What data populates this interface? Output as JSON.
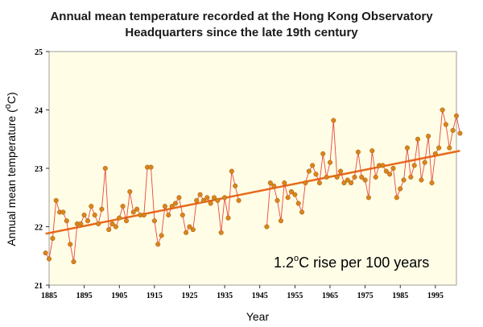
{
  "chart_data": {
    "type": "line",
    "title_line1": "Annual mean temperature recorded at the Hong Kong Observatory",
    "title_line2": "Headquarters since the late 19th century",
    "xlabel": "Year",
    "ylabel_main": "Annual mean temperature (",
    "ylabel_unit_sup": "o",
    "ylabel_unit": "C)",
    "xlim": [
      1885,
      2001
    ],
    "ylim": [
      21,
      25
    ],
    "x_ticks": [
      "1885",
      "1895",
      "1905",
      "1915",
      "1925",
      "1935",
      "1945",
      "1955",
      "1965",
      "1975",
      "1985",
      "1995"
    ],
    "y_ticks": [
      "21",
      "22",
      "23",
      "24",
      "25"
    ],
    "grid": false,
    "annotation_main": "1.2",
    "annotation_sup": "o",
    "annotation_rest": "C rise per 100 years",
    "colors": {
      "plot_background": "#fffde6",
      "series_line": "#e8483a",
      "marker_fill": "#d9851c",
      "marker_stroke": "#a65a0a",
      "trend_line": "#e86a1a"
    },
    "series": [
      {
        "x": [
          1884,
          1885,
          1886,
          1887,
          1888,
          1889,
          1890,
          1891,
          1892,
          1893,
          1894,
          1895,
          1896,
          1897,
          1898,
          1899,
          1900,
          1901,
          1902,
          1903,
          1904,
          1905,
          1906,
          1907,
          1908,
          1909,
          1910,
          1911,
          1912,
          1913,
          1914,
          1915,
          1916,
          1917,
          1918,
          1919,
          1920,
          1921,
          1922,
          1923,
          1924,
          1925,
          1926,
          1927,
          1928,
          1929,
          1930,
          1931,
          1932,
          1933,
          1934,
          1935,
          1936,
          1937,
          1938,
          1939,
          1947,
          1948,
          1949,
          1950,
          1951,
          1952,
          1953,
          1954,
          1955,
          1956,
          1957,
          1958,
          1959,
          1960,
          1961,
          1962,
          1963,
          1964,
          1965,
          1966,
          1967,
          1968,
          1969,
          1970,
          1971,
          1972,
          1973,
          1974,
          1975,
          1976,
          1977,
          1978,
          1979,
          1980,
          1981,
          1982,
          1983,
          1984,
          1985,
          1986,
          1987,
          1988,
          1989,
          1990,
          1991,
          1992,
          1993,
          1994,
          1995,
          1996,
          1997,
          1998,
          1999,
          2000,
          2001,
          2002
        ],
        "values": [
          21.55,
          21.45,
          21.8,
          22.45,
          22.25,
          22.25,
          22.1,
          21.7,
          21.4,
          22.05,
          22.05,
          22.2,
          22.1,
          22.35,
          22.2,
          22.05,
          22.3,
          23.0,
          21.95,
          22.05,
          22.0,
          22.15,
          22.35,
          22.1,
          22.6,
          22.25,
          22.3,
          22.2,
          22.2,
          23.02,
          23.02,
          22.1,
          21.7,
          21.85,
          22.35,
          22.2,
          22.35,
          22.4,
          22.5,
          22.2,
          21.9,
          22.0,
          21.95,
          22.45,
          22.55,
          22.45,
          22.5,
          22.4,
          22.5,
          22.45,
          21.9,
          22.5,
          22.15,
          22.95,
          22.7,
          22.45,
          22.0,
          22.75,
          22.7,
          22.45,
          22.1,
          22.75,
          22.5,
          22.6,
          22.55,
          22.4,
          22.25,
          22.75,
          22.95,
          23.05,
          22.9,
          22.75,
          23.25,
          22.85,
          23.1,
          23.82,
          22.85,
          22.95,
          22.75,
          22.8,
          22.75,
          22.85,
          23.28,
          22.85,
          22.8,
          22.5,
          23.3,
          22.85,
          23.05,
          23.05,
          22.95,
          22.9,
          23.0,
          22.5,
          22.65,
          22.8,
          23.35,
          22.85,
          23.05,
          23.5,
          22.8,
          23.1,
          23.55,
          22.75,
          23.25,
          23.35,
          24.0,
          23.75,
          23.35,
          23.65,
          23.9,
          23.6
        ]
      }
    ],
    "trend": {
      "x": [
        1884,
        2002
      ],
      "y": [
        21.88,
        23.3
      ]
    }
  }
}
